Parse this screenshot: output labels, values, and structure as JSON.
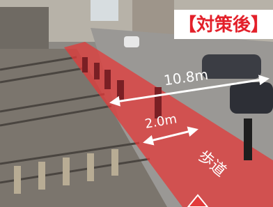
{
  "label": "【対策後】",
  "annotations": {
    "total_width": "10.8m",
    "sidewalk_width": "2.0m",
    "sidewalk": "歩道"
  }
}
